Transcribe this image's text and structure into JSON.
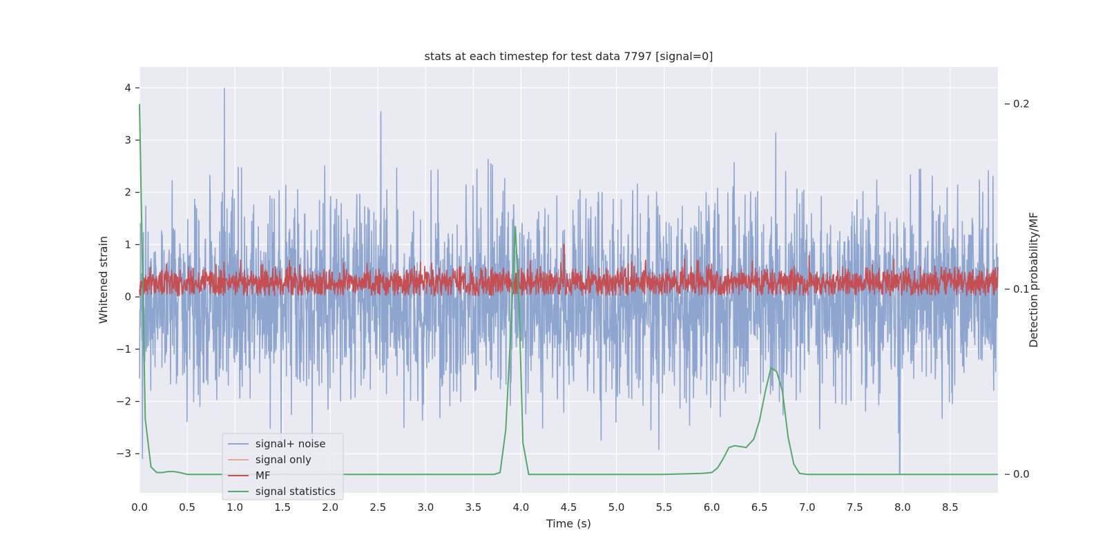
{
  "chart_data": {
    "type": "line",
    "title": "stats at each timestep for test data 7797 [signal=0]",
    "xlabel": "Time (s)",
    "ylabel": "Whitened strain",
    "ylabel_right": "Detection probability/MF",
    "xlim": [
      0,
      9
    ],
    "ylim": [
      -3.75,
      4.4
    ],
    "ylim_right": [
      -0.01,
      0.22
    ],
    "x_ticks": [
      "0.0",
      "0.5",
      "1.0",
      "1.5",
      "2.0",
      "2.5",
      "3.0",
      "3.5",
      "4.0",
      "4.5",
      "5.0",
      "5.5",
      "6.0",
      "6.5",
      "7.0",
      "7.5",
      "8.0",
      "8.5"
    ],
    "x_tick_values": [
      0,
      0.5,
      1,
      1.5,
      2,
      2.5,
      3,
      3.5,
      4,
      4.5,
      5,
      5.5,
      6,
      6.5,
      7,
      7.5,
      8,
      8.5
    ],
    "y_ticks": [
      "−3",
      "−2",
      "−1",
      "0",
      "1",
      "2",
      "3",
      "4"
    ],
    "y_tick_values": [
      -3,
      -2,
      -1,
      0,
      1,
      2,
      3,
      4
    ],
    "y_ticks_right": [
      "0.0",
      "0.1",
      "0.2"
    ],
    "y_tick_values_right": [
      0,
      0.1,
      0.2
    ],
    "grid": true,
    "legend_position": "lower-left",
    "series": [
      {
        "name": "signal+ noise",
        "axis": "left",
        "color": "#8ea6cf",
        "style": "dense noise",
        "y_range": [
          -3.4,
          4.0
        ],
        "peaks": [
          {
            "x": 0.89,
            "y": 4.0
          },
          {
            "x": 2.53,
            "y": 3.55
          },
          {
            "x": 6.67,
            "y": 3.15
          },
          {
            "x": 0.03,
            "y": -3.1
          },
          {
            "x": 7.97,
            "y": -3.4
          }
        ]
      },
      {
        "name": "signal only",
        "axis": "left",
        "color": "#e8a98f",
        "values": []
      },
      {
        "name": "MF",
        "axis": "left",
        "color": "#c44e52",
        "style": "dense noise",
        "y_range": [
          0.0,
          1.0
        ],
        "peaks": [
          {
            "x": 4.45,
            "y": 1.0
          }
        ]
      },
      {
        "name": "signal statistics",
        "axis": "right",
        "color": "#55a868",
        "x": [
          0.0,
          0.06,
          0.12,
          0.18,
          0.24,
          0.3,
          0.36,
          0.42,
          0.5,
          0.6,
          0.8,
          1.0,
          1.5,
          2.0,
          2.5,
          3.0,
          3.5,
          3.72,
          3.78,
          3.84,
          3.9,
          3.94,
          3.98,
          4.02,
          4.08,
          4.2,
          4.5,
          5.0,
          5.5,
          5.9,
          6.0,
          6.06,
          6.12,
          6.18,
          6.24,
          6.3,
          6.36,
          6.44,
          6.5,
          6.56,
          6.62,
          6.68,
          6.74,
          6.8,
          6.86,
          6.92,
          7.0,
          7.5,
          8.0,
          8.5,
          9.0
        ],
        "y": [
          0.2,
          0.03,
          0.004,
          0.001,
          0.001,
          0.0015,
          0.0015,
          0.001,
          0.0,
          0.0,
          0.0,
          0.0,
          0.0,
          0.0,
          0.0,
          0.0,
          0.0,
          0.0,
          0.001,
          0.024,
          0.085,
          0.134,
          0.09,
          0.017,
          0.0,
          0.0,
          0.0,
          0.0,
          0.0,
          0.0005,
          0.001,
          0.0035,
          0.0085,
          0.0145,
          0.0155,
          0.015,
          0.0145,
          0.019,
          0.029,
          0.0445,
          0.0575,
          0.0555,
          0.045,
          0.02,
          0.0055,
          0.0005,
          0.0,
          0.0,
          0.0,
          0.0,
          0.0
        ]
      }
    ]
  }
}
